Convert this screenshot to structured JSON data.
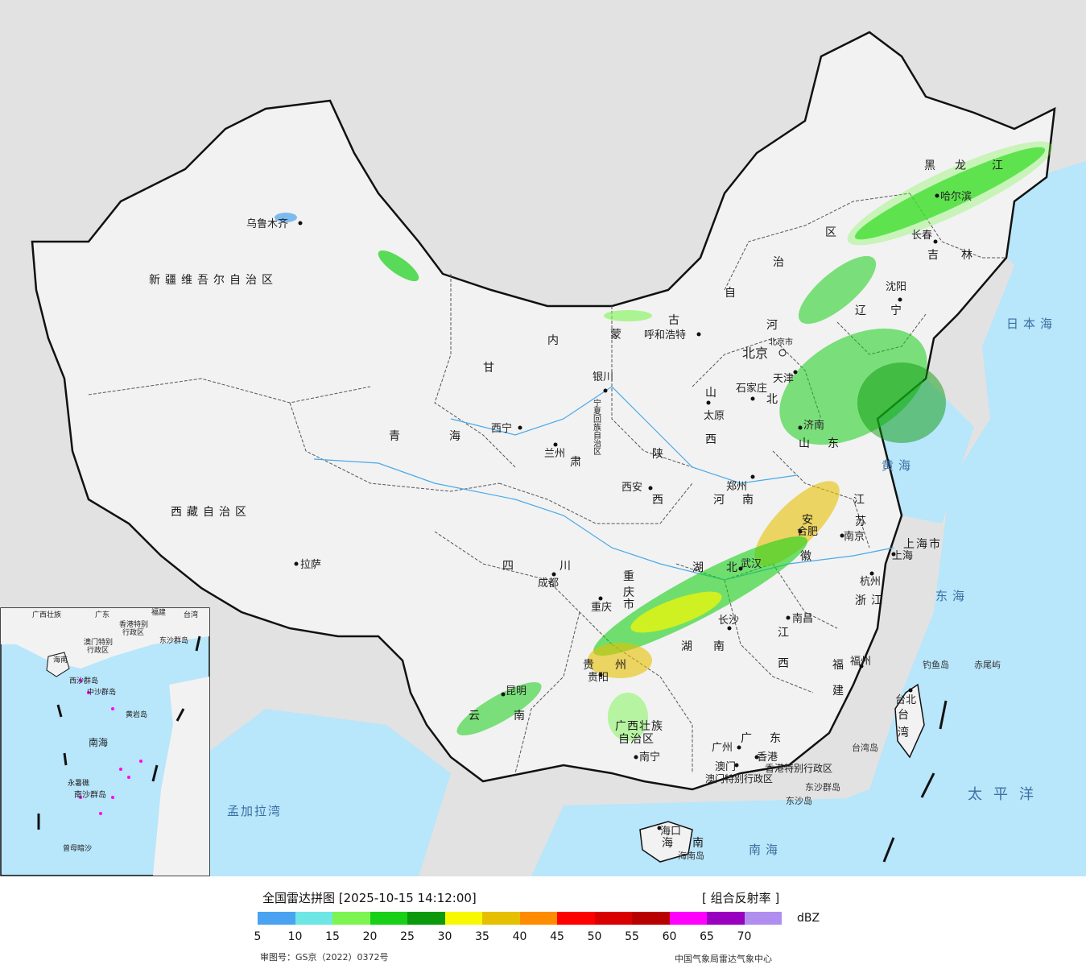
{
  "legend": {
    "title": "全国雷达拼图 [2025-10-15 14:12:00]",
    "product": "[ 组合反射率 ]",
    "unit": "dBZ",
    "ticks": [
      "5",
      "10",
      "15",
      "20",
      "25",
      "30",
      "35",
      "40",
      "45",
      "50",
      "55",
      "60",
      "65",
      "70"
    ],
    "colors": [
      "#4aa3f0",
      "#6fe6e6",
      "#7cf550",
      "#18d018",
      "#0b9a0b",
      "#f8f800",
      "#e6c000",
      "#ff8c00",
      "#ff0000",
      "#d80000",
      "#b80000",
      "#ff00ff",
      "#9a00c0",
      "#b08ef0"
    ],
    "approval": "审图号：GS京（2022）0372号",
    "credit": "中国气象局雷达气象中心"
  },
  "colors": {
    "sea": "#b8e6fb",
    "land": "#f2f2f2",
    "outside": "#e2e2e2",
    "border": "#111111"
  },
  "labels": {
    "provinces": {
      "xinjiang": "新疆维吾尔自治区",
      "xizang": "西藏自治区",
      "qinghai_1": "青",
      "qinghai_2": "海",
      "gansu_1": "甘",
      "gansu_2": "肃",
      "sichuan_1": "四",
      "sichuan_2": "川",
      "yunnan_1": "云",
      "yunnan_2": "南",
      "guizhou_1": "贵",
      "guizhou_2": "州",
      "guangxi_1": "广西壮族",
      "guangxi_2": "自治区",
      "guangdong_1": "广",
      "guangdong_2": "东",
      "hainan_1": "海",
      "hainan_2": "南",
      "hunan_1": "湖",
      "hunan_2": "南",
      "hubei_1": "湖",
      "hubei_2": "北",
      "jiangxi_1": "江",
      "jiangxi_2": "西",
      "fujian_1": "福",
      "fujian_2": "建",
      "zhejiang": "浙江",
      "anhui_1": "安",
      "anhui_2": "徽",
      "jiangsu_1": "江",
      "jiangsu_2": "苏",
      "shandong_1": "山",
      "shandong_2": "东",
      "henan_1": "河",
      "henan_2": "南",
      "shaanxi_1": "陕",
      "shaanxi_2": "西",
      "shanxi_1": "山",
      "shanxi_2": "西",
      "hebei_1": "河",
      "hebei_2": "北",
      "neimenggu_1": "内",
      "neimenggu_2": "蒙",
      "neimenggu_3": "古",
      "neimenggu_4": "自",
      "neimenggu_5": "治",
      "neimenggu_6": "区",
      "heilongjiang_1": "黑",
      "heilongjiang_2": "龙",
      "heilongjiang_3": "江",
      "jilin_1": "吉",
      "jilin_2": "林",
      "liaoning_1": "辽",
      "liaoning_2": "宁",
      "ningxia": "宁夏回族自治区",
      "chongqing_1": "重",
      "chongqing_2": "庆",
      "chongqing_3": "市",
      "tianjin": "天津",
      "shanghai": "上海市",
      "beijing": "北京",
      "taiwan_1": "台",
      "taiwan_2": "湾",
      "hk": "香港特别行政区",
      "macau": "澳门特别行政区"
    },
    "cities": {
      "urumqi": "乌鲁木齐",
      "lhasa": "拉萨",
      "xining": "西宁",
      "lanzhou": "兰州",
      "yinchuan": "银川",
      "hohhot": "呼和浩特",
      "beijing": "北京",
      "tianjin": "天津",
      "shijiazhuang": "石家庄",
      "taiyuan": "太原",
      "jinan": "济南",
      "zhengzhou": "郑州",
      "xian": "西安",
      "chengdu": "成都",
      "chongqing": "重庆",
      "wuhan": "武汉",
      "hefei": "合肥",
      "nanjing": "南京",
      "shanghai": "上海",
      "hangzhou": "杭州",
      "changsha": "长沙",
      "nanchang": "南昌",
      "fuzhou": "福州",
      "taibei": "台北",
      "guiyang": "贵阳",
      "kunming": "昆明",
      "nanning": "南宁",
      "guangzhou": "广州",
      "hongkong": "香港",
      "macau": "澳门",
      "haikou": "海口",
      "shenyang": "沈阳",
      "changchun": "长春",
      "harbin": "哈尔滨",
      "beijing_city": "北京市"
    },
    "seas": {
      "riben": "日本海",
      "huanghai": "黄海",
      "donghai": "东海",
      "nanhai": "南海",
      "taipingyang": "太平洋",
      "mengjiala": "孟加拉湾"
    },
    "islands": {
      "diaoyu": "钓鱼岛",
      "chiwei": "赤尾屿",
      "taiwan_dao": "台湾岛",
      "dongsha_qundao": "东沙群岛",
      "dongsha_dao": "东沙岛",
      "hainan_dao": "海南岛"
    },
    "inset": {
      "nanhai": "南海",
      "guangxi": "广西壮族",
      "guangdong": "广东",
      "fujian": "福建",
      "taiwan": "台湾",
      "hk": "香港特别",
      "hk2": "行政区",
      "macau": "澳门特别",
      "macau2": "行政区",
      "hainan": "海南",
      "dongsha": "东沙群岛",
      "xisha": "西沙群岛",
      "zhongsha": "中沙群岛",
      "huangyan": "黄岩岛",
      "nansha": "南沙群岛",
      "zengmu": "曾母暗沙",
      "yongshu": "永暑礁"
    }
  }
}
